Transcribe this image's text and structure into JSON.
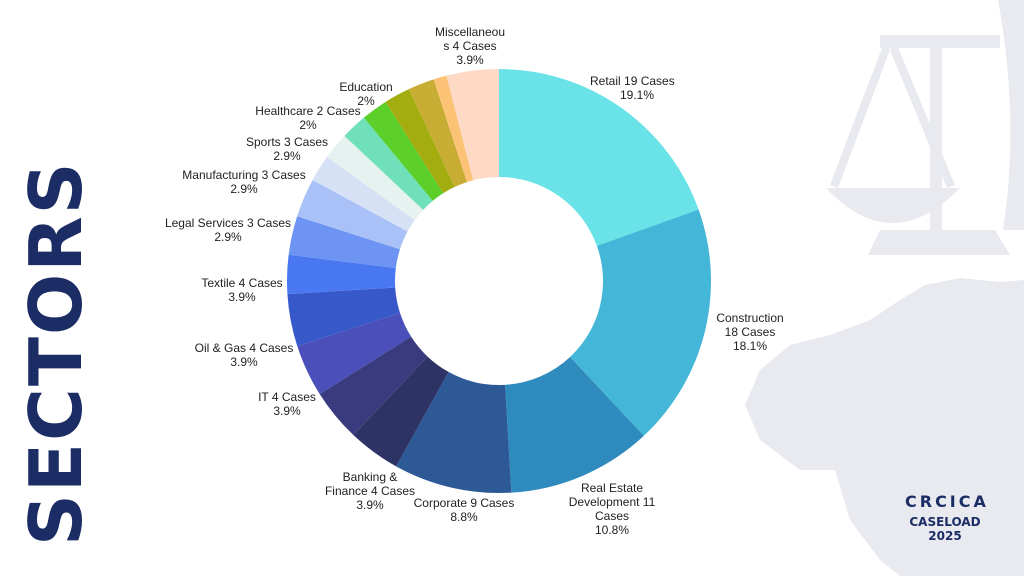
{
  "page": {
    "side_title": "SECTORS"
  },
  "brand": {
    "logo_text": "CRCICA",
    "line1": "CASELOAD",
    "line2": "2025"
  },
  "colors": {
    "title": "#1c2d66",
    "background_art": "#e8eaef"
  },
  "chart_data": {
    "type": "pie",
    "variant": "donut",
    "title": "",
    "slices": [
      {
        "label": "Retail 19 Cases",
        "value": 19.1,
        "pct_label": "19.1%",
        "color": "#6ae3e8"
      },
      {
        "label": "Construction 18 Cases",
        "value": 18.1,
        "pct_label": "18.1%",
        "color": "#44b7d8"
      },
      {
        "label": "Real Estate Development 11 Cases",
        "value": 10.8,
        "pct_label": "10.8%",
        "color": "#2f8bbd"
      },
      {
        "label": "Corporate 9 Cases",
        "value": 8.8,
        "pct_label": "8.8%",
        "color": "#2d5a96"
      },
      {
        "label": "Banking & Finance 4 Cases",
        "value": 3.9,
        "pct_label": "3.9%",
        "color": "#2e3366"
      },
      {
        "label": "IT 4 Cases",
        "value": 3.9,
        "pct_label": "3.9%",
        "color": "#3a3b7e"
      },
      {
        "label": "Oil & Gas 4 Cases",
        "value": 3.9,
        "pct_label": "3.9%",
        "color": "#4b4fb9"
      },
      {
        "label": "Textile 4 Cases",
        "value": 3.9,
        "pct_label": "3.9%",
        "color": "#3658c9"
      },
      {
        "label": "Legal Services 3 Cases",
        "value": 2.9,
        "pct_label": "2.9%",
        "color": "#4a78f2"
      },
      {
        "label": "Manufacturing 3 Cases",
        "value": 2.9,
        "pct_label": "2.9%",
        "color": "#6d93f3"
      },
      {
        "label": "Sports 3 Cases",
        "value": 2.9,
        "pct_label": "2.9%",
        "color": "#a9c1f7"
      },
      {
        "label": "Healthcare 2 Cases",
        "value": 2.0,
        "pct_label": "2%",
        "color": "#d6e1f5"
      },
      {
        "label": "Education",
        "value": 2.0,
        "pct_label": "2%",
        "color": "#e6f2f0"
      },
      {
        "label": "",
        "value": 1.96,
        "pct_label": "",
        "color": "#6fe0b9"
      },
      {
        "label": "",
        "value": 1.96,
        "pct_label": "",
        "color": "#5ccf2b"
      },
      {
        "label": "",
        "value": 1.96,
        "pct_label": "",
        "color": "#a3ad0f"
      },
      {
        "label": "",
        "value": 1.96,
        "pct_label": "",
        "color": "#c7ad33"
      },
      {
        "label": "",
        "value": 0.98,
        "pct_label": "",
        "color": "#fcc275"
      },
      {
        "label": "Miscellaneous 4 Cases",
        "value": 3.9,
        "pct_label": "3.9%",
        "color": "#fdd9c6"
      }
    ]
  }
}
